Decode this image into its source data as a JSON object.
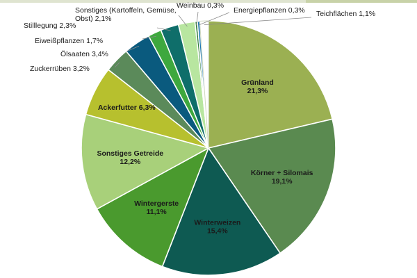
{
  "chart_data": {
    "type": "pie",
    "start_angle_deg": 0,
    "direction": "clockwise",
    "slices": [
      {
        "name": "Grünland",
        "value": 21.3,
        "label": "21,3%",
        "color": "#9bb052",
        "inside": true
      },
      {
        "name": "Körner + Silomais",
        "value": 19.1,
        "label": "19,1%",
        "color": "#5a8a50",
        "inside": true
      },
      {
        "name": "Winterweizen",
        "value": 15.4,
        "label": "15,4%",
        "color": "#0e5a52",
        "inside": true
      },
      {
        "name": "Wintergerste",
        "value": 11.1,
        "label": "11,1%",
        "color": "#4a9a2e",
        "inside": true
      },
      {
        "name": "Sonstiges Getreide",
        "value": 12.2,
        "label": "12,2%",
        "color": "#a8d07a",
        "inside": true
      },
      {
        "name": "Ackerfutter",
        "value": 6.3,
        "label": "6,3%",
        "color": "#b7c02e",
        "inside": true
      },
      {
        "name": "Zuckerrüben",
        "value": 3.2,
        "label": "3,2%",
        "color": "#5b8a5a",
        "inside": false
      },
      {
        "name": "Ölsaaten",
        "value": 3.4,
        "label": "3,4%",
        "color": "#0a5a7e",
        "inside": false
      },
      {
        "name": "Eiweißpflanzen",
        "value": 1.7,
        "label": "1,7%",
        "color": "#3ea83e",
        "inside": false
      },
      {
        "name": "Stilllegung",
        "value": 2.3,
        "label": "2,3%",
        "color": "#0f6e6a",
        "inside": false
      },
      {
        "name": "Sonstiges (Kartoffeln, Gemüse, Obst)",
        "value": 2.1,
        "label": "2,1%",
        "color": "#b8e6a0",
        "inside": false
      },
      {
        "name": "Weinbau",
        "value": 0.3,
        "label": "0,3%",
        "color": "#2f7d3a",
        "inside": false
      },
      {
        "name": "Energiepflanzen",
        "value": 0.3,
        "label": "0,3%",
        "color": "#1e78b4",
        "inside": false
      },
      {
        "name": "Teichflächen",
        "value": 1.1,
        "label": "1,1%",
        "color": "#ffffff",
        "inside": false
      }
    ],
    "outside_label_lines": {
      "Zuckerrüben": [
        "Zuckerrüben 3,2%"
      ],
      "Ölsaaten": [
        "Ölsaaten 3,4%"
      ],
      "Eiweißpflanzen": [
        "Eiweißpflanzen 1,7%"
      ],
      "Stilllegung": [
        "Stilllegung 2,3%"
      ],
      "Sonstiges (Kartoffeln, Gemüse, Obst)": [
        "Sonstiges (Kartoffeln, Gemüse,",
        "Obst) 2,1%"
      ],
      "Weinbau": [
        "Weinbau 0,3%"
      ],
      "Energiepflanzen": [
        "Energiepflanzen 0,3%"
      ],
      "Teichflächen": [
        "Teichflächen 1,1%"
      ]
    },
    "inside_label_lines": {
      "Grünland": [
        "Grünland",
        "21,3%"
      ],
      "Körner + Silomais": [
        "Körner + Silomais",
        "19,1%"
      ],
      "Winterweizen": [
        "Winterweizen",
        "15,4%"
      ],
      "Wintergerste": [
        "Wintergerste",
        "11,1%"
      ],
      "Sonstiges Getreide": [
        "Sonstiges Getreide",
        "12,2%"
      ],
      "Ackerfutter": [
        "Ackerfutter 6,3%"
      ]
    }
  }
}
